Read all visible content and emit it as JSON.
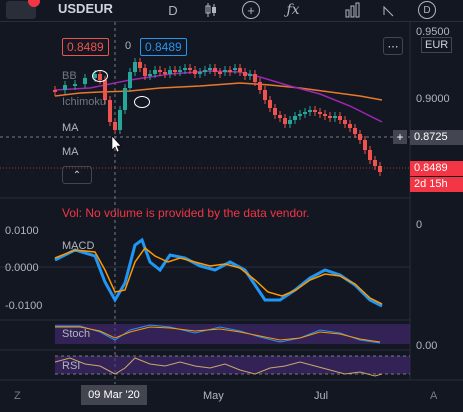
{
  "toolbar": {
    "symbol": "USDEUR",
    "interval": "D",
    "badge_colors": {
      "accent": "#f23645"
    }
  },
  "price_tags": {
    "bid": "0.8489",
    "ask": "0.8489"
  },
  "currency": "EUR",
  "indicators": {
    "bb": "BB",
    "ichimoku": "Ichimoku",
    "ma1": "MA",
    "ma2": "MA",
    "macd": "MACD",
    "stoch": "Stoch",
    "rsi": "RSI"
  },
  "price_axis": {
    "labels": [
      "0.9500",
      "0.9000",
      "0.8725",
      "0.8489",
      "2d 15h",
      "0"
    ],
    "last_price_color": "#f23645"
  },
  "macd_axis": [
    "0.0100",
    "0.0000",
    "-0.0100"
  ],
  "stoch_axis": [
    "0.00"
  ],
  "volume_msg": "Vol: No volume is provided by the data vendor.",
  "time_axis": {
    "labels": [
      "09 Mar '20",
      "May",
      "Jul"
    ],
    "left_btn": "Z",
    "right_btn": "A"
  },
  "colors": {
    "up": "#26a69a",
    "down": "#ef5350",
    "ma_orange": "#e8792b",
    "ma_purple": "#9c27b0",
    "macd_line": "#2196f3",
    "signal_line": "#ff9800"
  }
}
